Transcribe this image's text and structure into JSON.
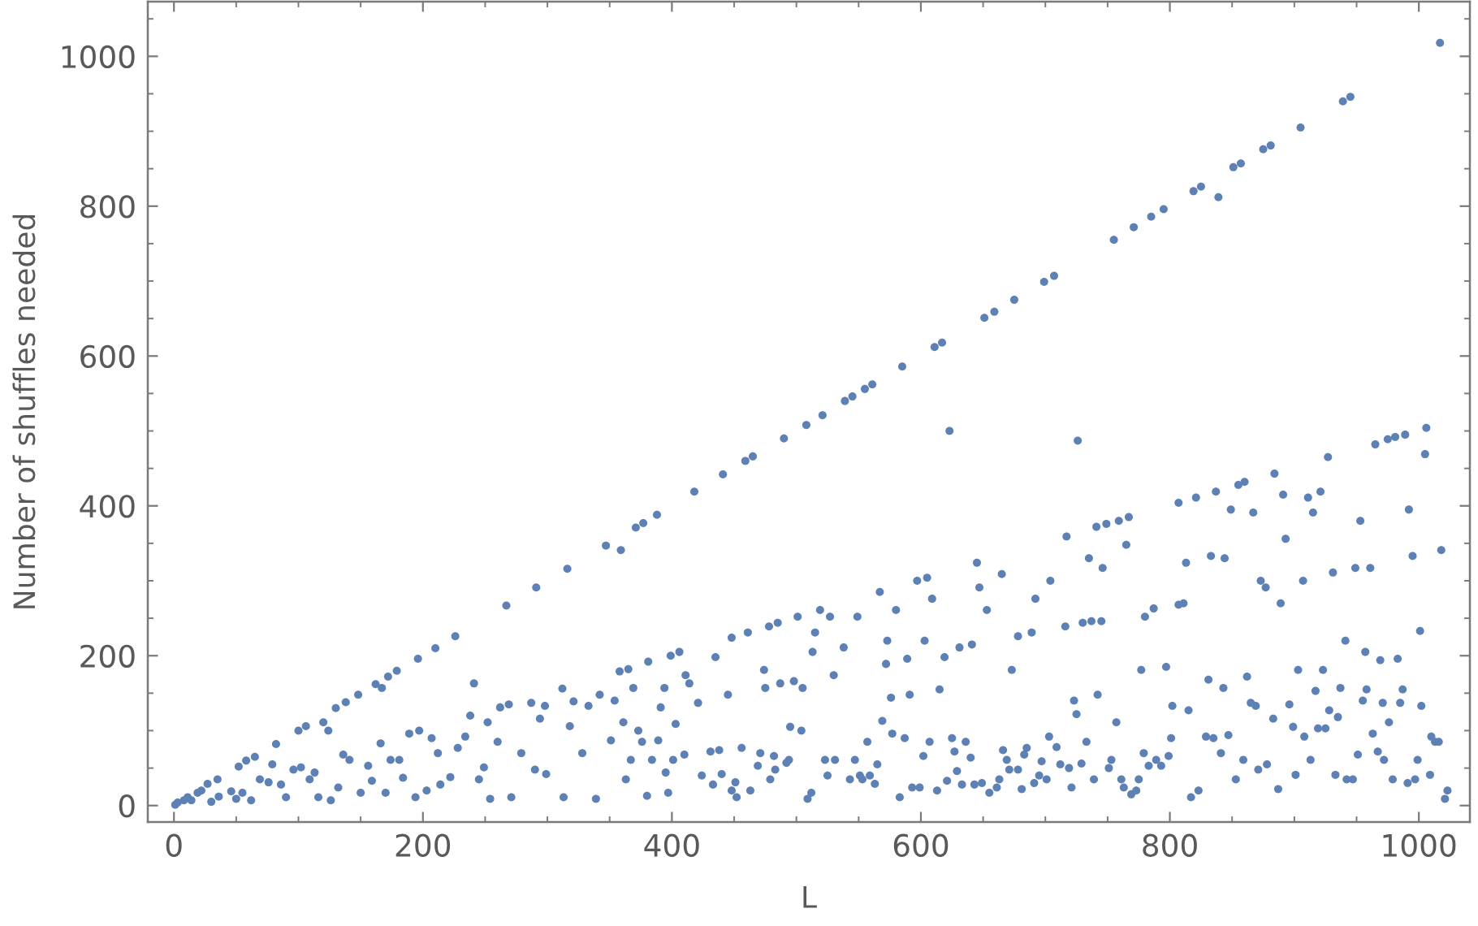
{
  "chart_data": {
    "type": "scatter",
    "xlabel": "L",
    "ylabel": "Number of shuffles needed",
    "color": "#5e81b5",
    "marker": "circle",
    "xlim": [
      -21,
      1041
    ],
    "ylim": [
      -22,
      1073
    ],
    "xticks": [
      0,
      {
        "value": 50,
        "label": null
      },
      {
        "value": 100,
        "label": null
      },
      {
        "value": 150,
        "label": null
      },
      200,
      {
        "value": 250,
        "label": null
      },
      {
        "value": 300,
        "label": null
      },
      {
        "value": 350,
        "label": null
      },
      400,
      {
        "value": 450,
        "label": null
      },
      {
        "value": 500,
        "label": null
      },
      {
        "value": 550,
        "label": null
      },
      600,
      {
        "value": 650,
        "label": null
      },
      {
        "value": 700,
        "label": null
      },
      {
        "value": 750,
        "label": null
      },
      800,
      {
        "value": 850,
        "label": null
      },
      {
        "value": 900,
        "label": null
      },
      {
        "value": 950,
        "label": null
      },
      1000
    ],
    "yticks": [
      0,
      {
        "value": 50,
        "label": null
      },
      {
        "value": 100,
        "label": null
      },
      {
        "value": 150,
        "label": null
      },
      200,
      {
        "value": 250,
        "label": null
      },
      {
        "value": 300,
        "label": null
      },
      {
        "value": 350,
        "label": null
      },
      400,
      {
        "value": 450,
        "label": null
      },
      {
        "value": 500,
        "label": null
      },
      {
        "value": 550,
        "label": null
      },
      600,
      {
        "value": 650,
        "label": null
      },
      {
        "value": 700,
        "label": null
      },
      {
        "value": 750,
        "label": null
      },
      800,
      {
        "value": 850,
        "label": null
      },
      {
        "value": 900,
        "label": null
      },
      {
        "value": 950,
        "label": null
      },
      1000,
      {
        "value": 1050,
        "label": null
      }
    ],
    "x": [
      1,
      3,
      8,
      11,
      14,
      19,
      22,
      27,
      30,
      35,
      36,
      46,
      50,
      52,
      55,
      58,
      62,
      65,
      69,
      76,
      79,
      82,
      86,
      90,
      96,
      100,
      102,
      106,
      109,
      113,
      116,
      120,
      124,
      126,
      130,
      132,
      136,
      138,
      141,
      148,
      150,
      156,
      159,
      162,
      166,
      167,
      170,
      172,
      174,
      179,
      181,
      184,
      189,
      194,
      196,
      197,
      203,
      207,
      210,
      212,
      214,
      222,
      226,
      228,
      234,
      238,
      241,
      245,
      249,
      252,
      254,
      260,
      262,
      267,
      269,
      271,
      279,
      287,
      290,
      291,
      294,
      298,
      299,
      312,
      313,
      316,
      318,
      321,
      328,
      333,
      339,
      342,
      347,
      351,
      354,
      358,
      359,
      361,
      363,
      365,
      367,
      369,
      371,
      373,
      376,
      377,
      380,
      381,
      384,
      388,
      389,
      391,
      394,
      395,
      397,
      399,
      401,
      403,
      406,
      410,
      411,
      414,
      418,
      421,
      424,
      431,
      433,
      435,
      438,
      440,
      441,
      445,
      448,
      448,
      451,
      452,
      456,
      459,
      461,
      463,
      465,
      469,
      471,
      474,
      475,
      478,
      479,
      482,
      483,
      485,
      487,
      490,
      492,
      494,
      495,
      498,
      501,
      504,
      505,
      508,
      509,
      512,
      513,
      515,
      519,
      521,
      523,
      525,
      527,
      530,
      531,
      538,
      539,
      543,
      545,
      547,
      549,
      551,
      553,
      555,
      557,
      559,
      561,
      563,
      565,
      567,
      569,
      572,
      573,
      576,
      577,
      580,
      583,
      585,
      587,
      589,
      591,
      593,
      597,
      599,
      602,
      603,
      605,
      607,
      609,
      611,
      613,
      615,
      617,
      619,
      621,
      623,
      625,
      627,
      629,
      631,
      633,
      636,
      640,
      641,
      643,
      645,
      647,
      649,
      651,
      653,
      655,
      659,
      661,
      663,
      665,
      666,
      669,
      671,
      673,
      675,
      678,
      678,
      681,
      683,
      685,
      689,
      691,
      692,
      695,
      697,
      699,
      701,
      703,
      704,
      707,
      709,
      712,
      716,
      717,
      719,
      721,
      723,
      725,
      726,
      729,
      730,
      733,
      735,
      737,
      739,
      741,
      742,
      745,
      746,
      749,
      751,
      753,
      755,
      757,
      759,
      761,
      763,
      765,
      767,
      769,
      771,
      773,
      775,
      777,
      779,
      780,
      783,
      785,
      787,
      789,
      793,
      795,
      797,
      799,
      801,
      802,
      807,
      807,
      811,
      813,
      815,
      817,
      819,
      821,
      823,
      825,
      829,
      831,
      833,
      835,
      837,
      839,
      841,
      843,
      844,
      847,
      849,
      851,
      853,
      855,
      857,
      859,
      860,
      862,
      865,
      867,
      869,
      871,
      873,
      875,
      877,
      878,
      881,
      883,
      884,
      887,
      889,
      891,
      893,
      896,
      899,
      901,
      903,
      905,
      907,
      908,
      911,
      913,
      915,
      917,
      919,
      921,
      923,
      925,
      927,
      928,
      931,
      933,
      935,
      937,
      939,
      941,
      942,
      945,
      947,
      949,
      951,
      953,
      955,
      957,
      958,
      961,
      963,
      965,
      967,
      969,
      971,
      972,
      975,
      976,
      979,
      981,
      983,
      985,
      987,
      989,
      991,
      992,
      995,
      997,
      999,
      1001,
      1002,
      1005,
      1006,
      1009,
      1010,
      1013,
      1016,
      1017,
      1018,
      1021,
      1023
    ],
    "values": [
      1,
      4,
      7,
      11,
      7,
      17,
      20,
      29,
      5,
      35,
      12,
      19,
      9,
      52,
      17,
      60,
      7,
      65,
      35,
      31,
      55,
      82,
      28,
      11,
      48,
      100,
      51,
      106,
      35,
      44,
      11,
      111,
      100,
      7,
      130,
      24,
      68,
      138,
      61,
      148,
      17,
      53,
      33,
      162,
      83,
      157,
      17,
      172,
      61,
      180,
      61,
      37,
      96,
      11,
      196,
      100,
      20,
      90,
      210,
      70,
      28,
      38,
      226,
      77,
      92,
      120,
      163,
      35,
      51,
      111,
      9,
      85,
      131,
      267,
      135,
      11,
      70,
      137,
      48,
      291,
      116,
      133,
      42,
      156,
      11,
      316,
      106,
      139,
      70,
      133,
      9,
      148,
      347,
      87,
      140,
      179,
      341,
      111,
      35,
      182,
      61,
      157,
      371,
      100,
      85,
      377,
      13,
      192,
      61,
      388,
      87,
      131,
      157,
      44,
      17,
      200,
      61,
      109,
      205,
      68,
      174,
      163,
      419,
      137,
      40,
      72,
      28,
      198,
      74,
      42,
      442,
      148,
      224,
      20,
      31,
      11,
      77,
      460,
      231,
      20,
      466,
      53,
      70,
      181,
      157,
      239,
      35,
      66,
      48,
      244,
      163,
      490,
      57,
      61,
      105,
      166,
      252,
      100,
      157,
      508,
      9,
      17,
      205,
      231,
      261,
      521,
      61,
      40,
      252,
      174,
      61,
      211,
      540,
      35,
      546,
      61,
      252,
      40,
      35,
      556,
      85,
      40,
      562,
      29,
      55,
      285,
      113,
      189,
      220,
      144,
      96,
      261,
      11,
      586,
      90,
      196,
      148,
      24,
      300,
      24,
      66,
      220,
      304,
      85,
      276,
      612,
      20,
      155,
      618,
      198,
      33,
      500,
      90,
      72,
      46,
      211,
      28,
      85,
      64,
      215,
      28,
      324,
      291,
      30,
      651,
      261,
      17,
      659,
      24,
      35,
      309,
      74,
      61,
      48,
      181,
      675,
      226,
      48,
      22,
      68,
      77,
      231,
      30,
      276,
      40,
      59,
      699,
      35,
      92,
      300,
      707,
      78,
      55,
      239,
      359,
      50,
      24,
      140,
      122,
      487,
      56,
      244,
      85,
      330,
      246,
      35,
      372,
      148,
      246,
      317,
      376,
      50,
      61,
      755,
      111,
      380,
      35,
      24,
      348,
      385,
      15,
      772,
      20,
      35,
      181,
      70,
      252,
      53,
      786,
      263,
      61,
      53,
      796,
      185,
      66,
      90,
      133,
      268,
      404,
      270,
      324,
      127,
      11,
      820,
      411,
      20,
      826,
      92,
      168,
      333,
      90,
      419,
      812,
      70,
      157,
      330,
      94,
      395,
      852,
      35,
      428,
      857,
      61,
      432,
      172,
      137,
      391,
      133,
      48,
      300,
      876,
      291,
      55,
      881,
      116,
      443,
      22,
      270,
      415,
      356,
      135,
      105,
      41,
      181,
      905,
      300,
      92,
      411,
      61,
      391,
      153,
      103,
      419,
      181,
      103,
      465,
      127,
      311,
      41,
      118,
      157,
      940,
      220,
      35,
      946,
      35,
      317,
      68,
      380,
      140,
      205,
      155,
      317,
      96,
      482,
      72,
      194,
      137,
      61,
      489,
      111,
      35,
      492,
      196,
      137,
      155,
      495,
      30,
      395,
      333,
      35,
      61,
      233,
      133,
      469,
      504,
      41,
      92,
      85,
      85,
      1018,
      341,
      9,
      20
    ]
  }
}
